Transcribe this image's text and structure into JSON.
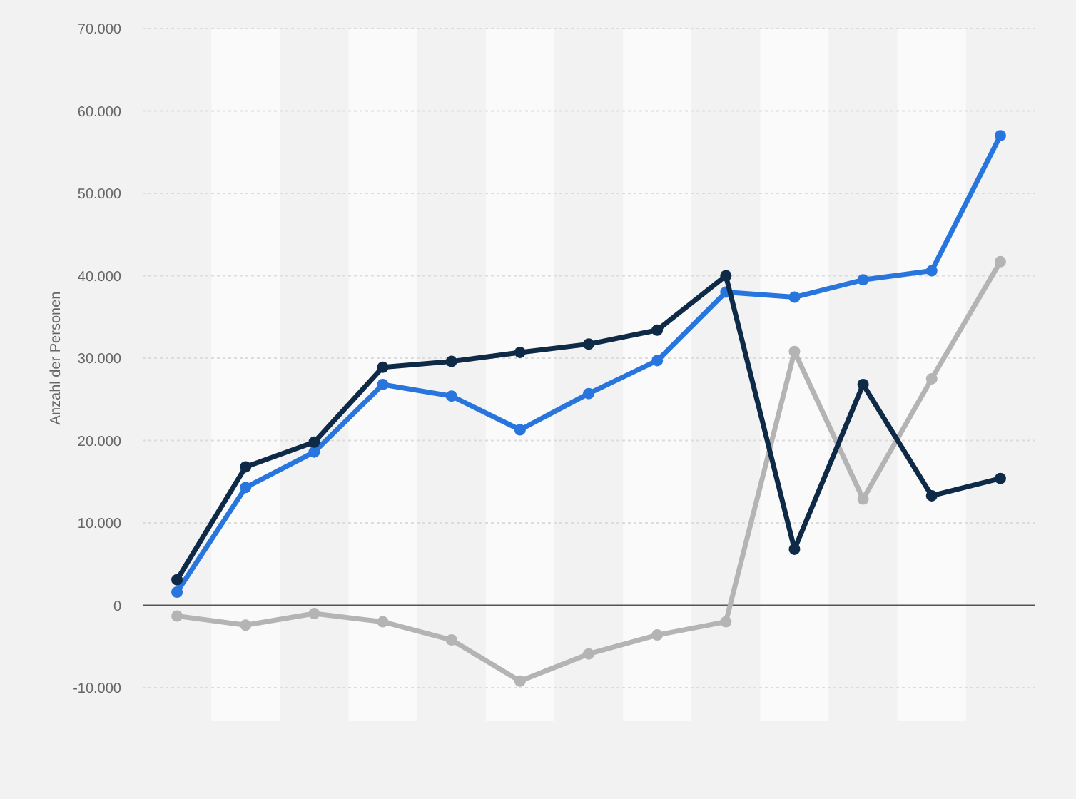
{
  "chart_data": {
    "type": "line",
    "ylabel": "Anzahl der Personen",
    "categories": [
      null,
      null,
      null,
      null,
      null,
      null,
      null,
      null,
      null,
      null,
      null,
      null,
      null
    ],
    "series": [
      {
        "color": "#2876dd",
        "values": [
          1600,
          14300,
          18600,
          26800,
          25400,
          21300,
          25700,
          29700,
          38000,
          37400,
          39500,
          40600,
          57000
        ]
      },
      {
        "color": "#b4b4b4",
        "values": [
          -1300,
          -2400,
          -1000,
          -2000,
          -4200,
          -9200,
          -5900,
          -3600,
          -2000,
          30800,
          12900,
          27500,
          41700
        ]
      },
      {
        "color": "#0e2a47",
        "values": [
          3100,
          16800,
          19800,
          28900,
          29600,
          30700,
          31700,
          33400,
          40000,
          6800,
          26800,
          13300,
          15400
        ]
      }
    ],
    "ylim": [
      -10000,
      70000
    ],
    "yticks": [
      {
        "value": -10000,
        "label": "-10.000"
      },
      0,
      {
        "value": 10000,
        "label": "10.000"
      },
      {
        "value": 20000,
        "label": "20.000"
      },
      {
        "value": 30000,
        "label": "30.000"
      },
      {
        "value": 40000,
        "label": "40.000"
      },
      {
        "value": 50000,
        "label": "50.000"
      },
      {
        "value": 60000,
        "label": "60.000"
      },
      {
        "value": 70000,
        "label": "70.000"
      }
    ],
    "grid": "y",
    "marker": "circle",
    "line_style": "solid"
  }
}
